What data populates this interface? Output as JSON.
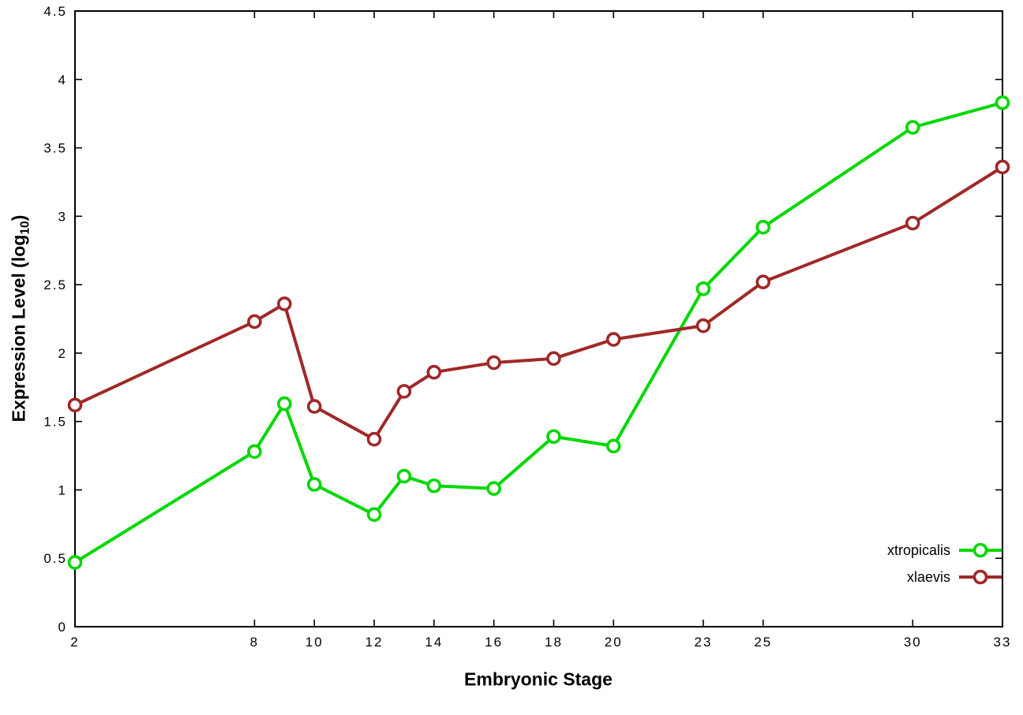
{
  "chart_data": {
    "type": "line",
    "x": [
      2,
      8,
      9,
      10,
      12,
      13,
      14,
      16,
      18,
      20,
      23,
      25,
      30,
      33
    ],
    "series": [
      {
        "name": "xtropicalis",
        "color": "#00d800",
        "values": [
          0.47,
          1.28,
          1.63,
          1.04,
          0.82,
          1.1,
          1.03,
          1.01,
          1.39,
          1.32,
          2.47,
          2.92,
          3.65,
          3.83
        ]
      },
      {
        "name": "xlaevis",
        "color": "#a02828",
        "values": [
          1.62,
          2.23,
          2.36,
          1.61,
          1.37,
          1.72,
          1.86,
          1.93,
          1.96,
          2.1,
          2.2,
          2.52,
          2.95,
          3.36
        ]
      }
    ],
    "xlabel": "Embryonic Stage",
    "ylabel": {
      "prefix": "Expression Level (log",
      "subscript": "10",
      "suffix": ")"
    },
    "xticks": [
      2,
      8,
      10,
      12,
      14,
      16,
      18,
      20,
      23,
      25,
      30,
      33
    ],
    "yticks": [
      "0",
      "0.5",
      "1",
      "1.5",
      "2",
      "2.5",
      "3",
      "3.5",
      "4",
      "4.5"
    ],
    "xlim": [
      2,
      33
    ],
    "ylim": [
      0,
      4.5
    ],
    "grid": false,
    "legend_position": "bottom-right",
    "axis_color": "#000000",
    "background": "#ffffff"
  }
}
